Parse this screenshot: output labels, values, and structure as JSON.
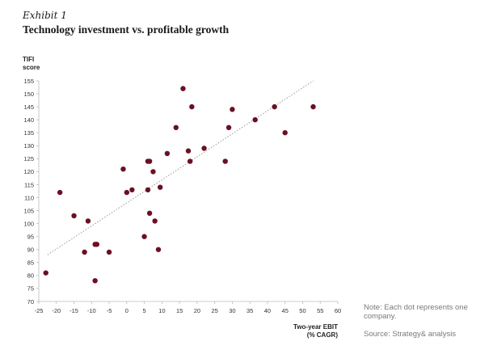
{
  "exhibit_label": "Exhibit 1",
  "title": "Technology investment vs. profitable growth",
  "note": "Note: Each dot represents one company.",
  "source": "Source: Strategy& analysis",
  "colors": {
    "dot": "#6b1023",
    "trend": "#999999",
    "axis": "#bbbbbb",
    "text": "#333333"
  },
  "chart_data": {
    "type": "scatter",
    "ylabel": [
      "TIFI",
      "score"
    ],
    "xlabel": [
      "Two-year EBIT",
      "(% CAGR)"
    ],
    "xlim": [
      -25,
      60
    ],
    "ylim": [
      70,
      155
    ],
    "xticks": [
      -25,
      -20,
      -15,
      -10,
      -5,
      0,
      5,
      10,
      15,
      20,
      25,
      30,
      35,
      40,
      45,
      50,
      55,
      60
    ],
    "yticks": [
      70,
      75,
      80,
      85,
      90,
      95,
      100,
      105,
      110,
      115,
      120,
      125,
      130,
      135,
      140,
      145,
      150,
      155
    ],
    "grid": false,
    "trendline": {
      "x": [
        -22.5,
        53
      ],
      "y": [
        88,
        155
      ]
    },
    "points": [
      {
        "x": -23,
        "y": 81
      },
      {
        "x": -19,
        "y": 112
      },
      {
        "x": -15,
        "y": 103
      },
      {
        "x": -12,
        "y": 89
      },
      {
        "x": -11,
        "y": 101
      },
      {
        "x": -9,
        "y": 92
      },
      {
        "x": -8.5,
        "y": 92
      },
      {
        "x": -9,
        "y": 78
      },
      {
        "x": -5,
        "y": 89
      },
      {
        "x": -1,
        "y": 121
      },
      {
        "x": 0,
        "y": 112
      },
      {
        "x": 1.5,
        "y": 113
      },
      {
        "x": 5,
        "y": 95
      },
      {
        "x": 6,
        "y": 113
      },
      {
        "x": 6,
        "y": 124
      },
      {
        "x": 6.5,
        "y": 124
      },
      {
        "x": 6.5,
        "y": 104
      },
      {
        "x": 7.5,
        "y": 120
      },
      {
        "x": 8,
        "y": 101
      },
      {
        "x": 9,
        "y": 90
      },
      {
        "x": 9.5,
        "y": 114
      },
      {
        "x": 11.5,
        "y": 127
      },
      {
        "x": 14,
        "y": 137
      },
      {
        "x": 16,
        "y": 152
      },
      {
        "x": 17.5,
        "y": 128
      },
      {
        "x": 18,
        "y": 124
      },
      {
        "x": 18.5,
        "y": 145
      },
      {
        "x": 22,
        "y": 129
      },
      {
        "x": 28,
        "y": 124
      },
      {
        "x": 29,
        "y": 137
      },
      {
        "x": 30,
        "y": 144
      },
      {
        "x": 36.5,
        "y": 140
      },
      {
        "x": 42,
        "y": 145
      },
      {
        "x": 45,
        "y": 135
      },
      {
        "x": 53,
        "y": 145
      }
    ]
  }
}
